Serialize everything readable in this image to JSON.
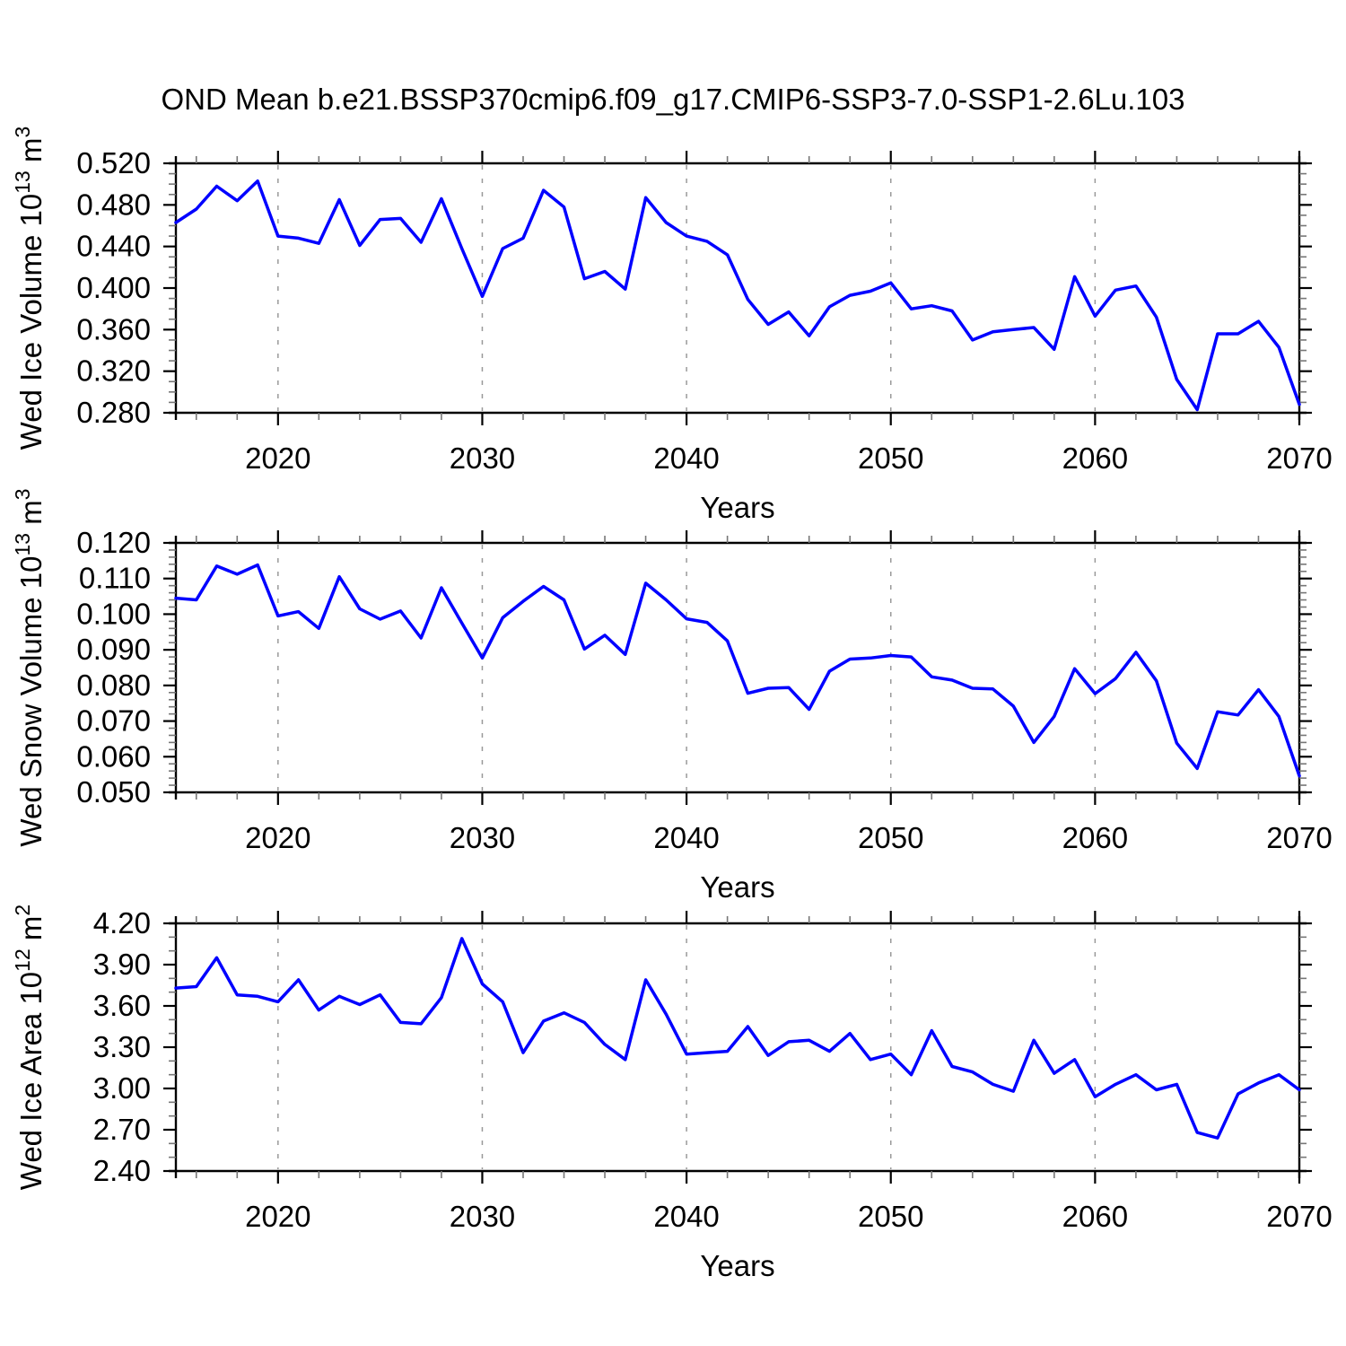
{
  "title": "OND Mean b.e21.BSSP370cmip6.f09_g17.CMIP6-SSP3-7.0-SSP1-2.6Lu.103",
  "colors": {
    "line": "#0000ff",
    "frame": "#000000",
    "grid": "#999999",
    "minor_tick": "#777777",
    "text": "#000000"
  },
  "chart_data": [
    {
      "type": "line",
      "name": "wed-ice-volume",
      "title": "",
      "xlabel": "Years",
      "ylabel": "Wed Ice Volume 10^13 m^3",
      "ylabel_parts": [
        {
          "text": "Wed Ice Volume 10"
        },
        {
          "text": "13",
          "sup": true
        },
        {
          "text": " m"
        },
        {
          "text": "3",
          "sup": true
        }
      ],
      "line_color": "#0000ff",
      "x_range": [
        2015,
        2070
      ],
      "y_range": [
        0.28,
        0.52
      ],
      "y_major_step": 0.04,
      "y_minor_step": 0.01,
      "y_tick_decimals": 3,
      "x_major_ticks": [
        2020,
        2030,
        2040,
        2050,
        2060,
        2070
      ],
      "x_minor_step": 2,
      "grid_x": [
        2020,
        2030,
        2040,
        2050,
        2060
      ],
      "grid_on": true,
      "legend": "none",
      "years": [
        2015,
        2016,
        2017,
        2018,
        2019,
        2020,
        2021,
        2022,
        2023,
        2024,
        2025,
        2026,
        2027,
        2028,
        2029,
        2030,
        2031,
        2032,
        2033,
        2034,
        2035,
        2036,
        2037,
        2038,
        2039,
        2040,
        2041,
        2042,
        2043,
        2044,
        2045,
        2046,
        2047,
        2048,
        2049,
        2050,
        2051,
        2052,
        2053,
        2054,
        2055,
        2056,
        2057,
        2058,
        2059,
        2060,
        2061,
        2062,
        2063,
        2064,
        2065,
        2066,
        2067,
        2068,
        2069,
        2070
      ],
      "values": [
        0.463,
        0.476,
        0.498,
        0.484,
        0.503,
        0.45,
        0.448,
        0.443,
        0.485,
        0.441,
        0.466,
        0.467,
        0.444,
        0.486,
        0.438,
        0.392,
        0.438,
        0.448,
        0.494,
        0.478,
        0.409,
        0.416,
        0.399,
        0.487,
        0.463,
        0.45,
        0.445,
        0.432,
        0.389,
        0.365,
        0.377,
        0.354,
        0.382,
        0.393,
        0.397,
        0.405,
        0.38,
        0.383,
        0.378,
        0.35,
        0.358,
        0.36,
        0.362,
        0.341,
        0.411,
        0.373,
        0.398,
        0.402,
        0.372,
        0.312,
        0.283,
        0.356,
        0.356,
        0.368,
        0.343,
        0.288
      ]
    },
    {
      "type": "line",
      "name": "wed-snow-volume",
      "title": "",
      "xlabel": "Years",
      "ylabel": "Wed Snow Volume 10^13 m^3",
      "ylabel_parts": [
        {
          "text": "Wed Snow Volume 10"
        },
        {
          "text": "13",
          "sup": true
        },
        {
          "text": " m"
        },
        {
          "text": "3",
          "sup": true
        }
      ],
      "line_color": "#0000ff",
      "x_range": [
        2015,
        2070
      ],
      "y_range": [
        0.05,
        0.12
      ],
      "y_major_step": 0.01,
      "y_minor_step": 0.002,
      "y_tick_decimals": 3,
      "x_major_ticks": [
        2020,
        2030,
        2040,
        2050,
        2060,
        2070
      ],
      "x_minor_step": 2,
      "grid_x": [
        2020,
        2030,
        2040,
        2050,
        2060
      ],
      "grid_on": true,
      "legend": "none",
      "years": [
        2015,
        2016,
        2017,
        2018,
        2019,
        2020,
        2021,
        2022,
        2023,
        2024,
        2025,
        2026,
        2027,
        2028,
        2029,
        2030,
        2031,
        2032,
        2033,
        2034,
        2035,
        2036,
        2037,
        2038,
        2039,
        2040,
        2041,
        2042,
        2043,
        2044,
        2045,
        2046,
        2047,
        2048,
        2049,
        2050,
        2051,
        2052,
        2053,
        2054,
        2055,
        2056,
        2057,
        2058,
        2059,
        2060,
        2061,
        2062,
        2063,
        2064,
        2065,
        2066,
        2067,
        2068,
        2069,
        2070
      ],
      "values": [
        0.1045,
        0.104,
        0.1135,
        0.1112,
        0.1138,
        0.0995,
        0.1007,
        0.096,
        0.1105,
        0.1015,
        0.0986,
        0.1009,
        0.0933,
        0.1074,
        0.0975,
        0.0877,
        0.099,
        0.1036,
        0.1078,
        0.104,
        0.0902,
        0.0941,
        0.0887,
        0.1087,
        0.104,
        0.0987,
        0.0977,
        0.0925,
        0.0778,
        0.0792,
        0.0794,
        0.0733,
        0.084,
        0.0874,
        0.0877,
        0.0884,
        0.088,
        0.0824,
        0.0815,
        0.0792,
        0.079,
        0.0742,
        0.064,
        0.0713,
        0.0847,
        0.0777,
        0.0819,
        0.0893,
        0.0813,
        0.0638,
        0.0567,
        0.0726,
        0.0717,
        0.0788,
        0.0713,
        0.0546
      ]
    },
    {
      "type": "line",
      "name": "wed-ice-area",
      "title": "",
      "xlabel": "Years",
      "ylabel": "Wed Ice Area 10^12 m^2",
      "ylabel_parts": [
        {
          "text": "Wed Ice Area 10"
        },
        {
          "text": "12",
          "sup": true
        },
        {
          "text": " m"
        },
        {
          "text": "2",
          "sup": true
        }
      ],
      "line_color": "#0000ff",
      "x_range": [
        2015,
        2070
      ],
      "y_range": [
        2.4,
        4.2
      ],
      "y_major_step": 0.3,
      "y_minor_step": 0.1,
      "y_tick_decimals": 2,
      "x_major_ticks": [
        2020,
        2030,
        2040,
        2050,
        2060,
        2070
      ],
      "x_minor_step": 2,
      "grid_x": [
        2020,
        2030,
        2040,
        2050,
        2060
      ],
      "grid_on": true,
      "legend": "none",
      "years": [
        2015,
        2016,
        2017,
        2018,
        2019,
        2020,
        2021,
        2022,
        2023,
        2024,
        2025,
        2026,
        2027,
        2028,
        2029,
        2030,
        2031,
        2032,
        2033,
        2034,
        2035,
        2036,
        2037,
        2038,
        2039,
        2040,
        2041,
        2042,
        2043,
        2044,
        2045,
        2046,
        2047,
        2048,
        2049,
        2050,
        2051,
        2052,
        2053,
        2054,
        2055,
        2056,
        2057,
        2058,
        2059,
        2060,
        2061,
        2062,
        2063,
        2064,
        2065,
        2066,
        2067,
        2068,
        2069,
        2070
      ],
      "values": [
        3.73,
        3.74,
        3.95,
        3.68,
        3.67,
        3.63,
        3.79,
        3.57,
        3.67,
        3.61,
        3.68,
        3.48,
        3.47,
        3.66,
        4.09,
        3.76,
        3.63,
        3.26,
        3.49,
        3.55,
        3.48,
        3.32,
        3.21,
        3.79,
        3.54,
        3.25,
        3.26,
        3.27,
        3.45,
        3.24,
        3.34,
        3.35,
        3.27,
        3.4,
        3.21,
        3.25,
        3.1,
        3.42,
        3.16,
        3.12,
        3.03,
        2.98,
        3.35,
        3.11,
        3.21,
        2.94,
        3.03,
        3.1,
        2.99,
        3.03,
        2.68,
        2.64,
        2.96,
        3.04,
        3.1,
        2.99
      ]
    }
  ]
}
